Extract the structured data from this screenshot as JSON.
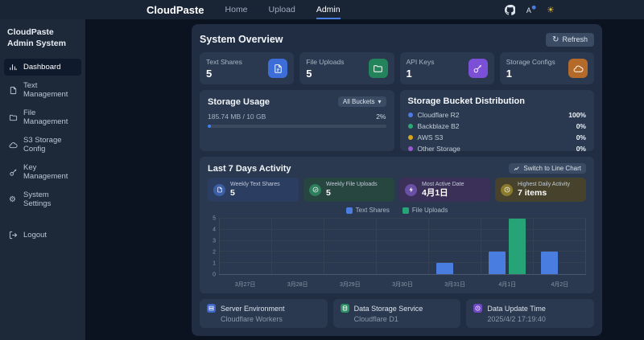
{
  "navbar": {
    "brand": "CloudPaste",
    "links": [
      {
        "label": "Home"
      },
      {
        "label": "Upload"
      },
      {
        "label": "Admin",
        "active": true
      }
    ],
    "icons": [
      "github-icon",
      "language-icon",
      "theme-sun-icon"
    ]
  },
  "sidebar": {
    "title": "CloudPaste Admin System",
    "items": [
      {
        "label": "Dashboard",
        "icon": "bar-chart",
        "active": true
      },
      {
        "label": "Text Management",
        "icon": "document"
      },
      {
        "label": "File Management",
        "icon": "folder"
      },
      {
        "label": "S3 Storage Config",
        "icon": "cloud"
      },
      {
        "label": "Key Management",
        "icon": "key"
      },
      {
        "label": "System Settings",
        "icon": "gear"
      }
    ],
    "logout": {
      "label": "Logout",
      "icon": "logout"
    }
  },
  "main": {
    "title": "System Overview",
    "refresh_label": "Refresh",
    "stats": [
      {
        "label": "Text Shares",
        "value": "5",
        "color": "#3d6dd8",
        "icon": "document"
      },
      {
        "label": "File Uploads",
        "value": "5",
        "color": "#23835a",
        "icon": "folder"
      },
      {
        "label": "API Keys",
        "value": "1",
        "color": "#7b4fd6",
        "icon": "key"
      },
      {
        "label": "Storage Configs",
        "value": "1",
        "color": "#b46a28",
        "icon": "cloud"
      }
    ],
    "storage_usage": {
      "title": "Storage Usage",
      "filter_label": "All Buckets",
      "usage_text": "185.74 MB / 10 GB",
      "percent_text": "2%",
      "percent": 2
    },
    "bucket_distribution": {
      "title": "Storage Bucket Distribution",
      "rows": [
        {
          "label": "Cloudflare R2",
          "value": "100%",
          "color": "#4a7de0"
        },
        {
          "label": "Backblaze B2",
          "value": "0%",
          "color": "#2aa876"
        },
        {
          "label": "AWS S3",
          "value": "0%",
          "color": "#d9a520"
        },
        {
          "label": "Other Storage",
          "value": "0%",
          "color": "#9b59d0"
        }
      ]
    },
    "activity": {
      "title": "Last 7 Days Activity",
      "switch_label": "Switch to Line Chart",
      "cards": [
        {
          "label": "Weekly Text Shares",
          "value": "5",
          "icon": "document"
        },
        {
          "label": "Weekly File Uploads",
          "value": "5",
          "icon": "check-circle"
        },
        {
          "label": "Most Active Date",
          "value": "4月1日",
          "icon": "zap"
        },
        {
          "label": "Highest Daily Activity",
          "value": "7 items",
          "icon": "clock"
        }
      ]
    },
    "footer_cards": [
      {
        "label": "Server Environment",
        "value": "Cloudflare Workers",
        "icon": "server"
      },
      {
        "label": "Data Storage Service",
        "value": "Cloudflare D1",
        "icon": "database"
      },
      {
        "label": "Data Update Time",
        "value": "2025/4/2 17:19:40",
        "icon": "clock"
      }
    ]
  },
  "chart_data": {
    "type": "bar",
    "title": "Last 7 Days Activity",
    "categories": [
      "3月27日",
      "3月28日",
      "3月29日",
      "3月30日",
      "3月31日",
      "4月1日",
      "4月2日"
    ],
    "series": [
      {
        "name": "Text Shares",
        "color": "#4a7de0",
        "values": [
          0,
          0,
          0,
          0,
          1,
          2,
          2
        ]
      },
      {
        "name": "File Uploads",
        "color": "#27a477",
        "values": [
          0,
          0,
          0,
          0,
          0,
          5,
          0
        ]
      }
    ],
    "xlabel": "",
    "ylabel": "",
    "ylim": [
      0,
      5
    ],
    "yticks": [
      0,
      1,
      2,
      3,
      4,
      5
    ],
    "legend_position": "top",
    "grid": true
  }
}
